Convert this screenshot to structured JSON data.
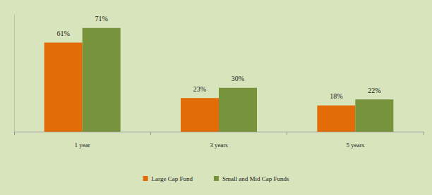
{
  "chart_data": {
    "type": "bar",
    "categories": [
      "1 year",
      "3 years",
      "5 years"
    ],
    "series": [
      {
        "name": "Large Cap Fund",
        "color": "#e36c09",
        "values": [
          61,
          23,
          18
        ],
        "value_labels": [
          "61%",
          "23%",
          "18%"
        ]
      },
      {
        "name": "Small and Mid Cap Funds",
        "color": "#77933c",
        "values": [
          71,
          30,
          22
        ],
        "value_labels": [
          "71%",
          "30%",
          "22%"
        ]
      }
    ],
    "ylim": [
      0,
      80
    ],
    "grid": false,
    "legend": "bottom",
    "data_labels": true,
    "tick_labels": "x"
  }
}
